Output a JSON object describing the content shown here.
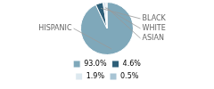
{
  "chart_data": {
    "type": "pie",
    "categories": [
      "HISPANIC",
      "BLACK",
      "WHITE",
      "ASIAN"
    ],
    "values": [
      93.0,
      4.6,
      1.9,
      0.5
    ],
    "value_labels": [
      "93.0%",
      "4.6%",
      "1.9%",
      "0.5%"
    ],
    "colors": [
      "#7fa8ba",
      "#2e5f78",
      "#dce8ef",
      "#a8c4d4"
    ],
    "legend": "bottom"
  }
}
